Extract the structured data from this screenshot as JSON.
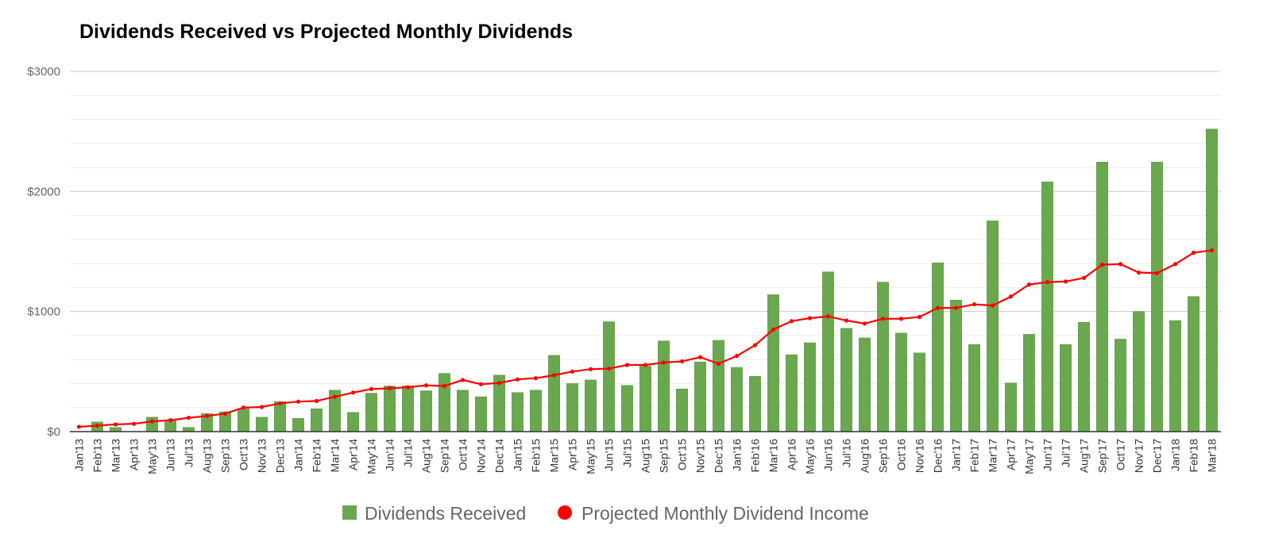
{
  "chart_data": {
    "type": "bar",
    "title": "Dividends Received vs Projected Monthly Dividends",
    "xlabel": "",
    "ylabel": "",
    "ylim": [
      0,
      3000
    ],
    "y_ticks": [
      {
        "value": 0,
        "label": "$0"
      },
      {
        "value": 1000,
        "label": "$1000"
      },
      {
        "value": 2000,
        "label": "$2000"
      },
      {
        "value": 3000,
        "label": "$3000"
      }
    ],
    "grid": true,
    "legend_position": "bottom",
    "categories": [
      "Jan'13",
      "Feb'13",
      "Mar'13",
      "Apr'13",
      "May'13",
      "Jun'13",
      "Jul'13",
      "Aug'13",
      "Sep'13",
      "Oct'13",
      "Nov'13",
      "Dec'13",
      "Jan'14",
      "Feb'14",
      "Mar'14",
      "Apr'14",
      "May'14",
      "Jun'14",
      "Jul'14",
      "Aug'14",
      "Sep'14",
      "Oct'14",
      "Nov'14",
      "Dec'14",
      "Jan'15",
      "Feb'15",
      "Mar'15",
      "Apr'15",
      "May'15",
      "Jun'15",
      "Jul'15",
      "Aug'15",
      "Sep'15",
      "Oct'15",
      "Nov'15",
      "Dec'15",
      "Jan'16",
      "Feb'16",
      "Mar'16",
      "Apr'16",
      "May'16",
      "Jun'16",
      "Jul'16",
      "Aug'16",
      "Sep'16",
      "Oct'16",
      "Nov'16",
      "Dec'16",
      "Jan'17",
      "Feb'17",
      "Mar'17",
      "Apr'17",
      "May'17",
      "Jun'17",
      "Jul'17",
      "Aug'17",
      "Sep'17",
      "Oct'17",
      "Nov'17",
      "Dec'17",
      "Jan'18",
      "Feb'18",
      "Mar'18"
    ],
    "series": [
      {
        "name": "Dividends Received",
        "type": "bar",
        "color": "#6aa84f",
        "values": [
          0,
          80,
          35,
          0,
          120,
          95,
          35,
          150,
          165,
          190,
          120,
          250,
          110,
          190,
          345,
          160,
          320,
          380,
          380,
          340,
          485,
          345,
          290,
          470,
          325,
          345,
          635,
          400,
          430,
          915,
          385,
          545,
          755,
          355,
          580,
          760,
          535,
          460,
          1140,
          640,
          740,
          1330,
          860,
          780,
          1245,
          820,
          655,
          1405,
          1095,
          725,
          1755,
          405,
          810,
          2080,
          725,
          910,
          2245,
          770,
          1000,
          2245,
          925,
          1125,
          2520
        ]
      },
      {
        "name": "Projected Monthly Dividend Income",
        "type": "line",
        "color": "#ff0000",
        "values": [
          40,
          50,
          60,
          65,
          85,
          95,
          115,
          130,
          150,
          200,
          205,
          235,
          250,
          255,
          290,
          325,
          355,
          360,
          370,
          385,
          380,
          430,
          395,
          405,
          435,
          445,
          470,
          500,
          520,
          525,
          555,
          555,
          575,
          585,
          620,
          565,
          630,
          720,
          850,
          920,
          945,
          960,
          925,
          900,
          940,
          940,
          955,
          1030,
          1030,
          1060,
          1050,
          1125,
          1225,
          1245,
          1250,
          1280,
          1390,
          1395,
          1325,
          1320,
          1395,
          1490,
          1510
        ]
      }
    ]
  }
}
